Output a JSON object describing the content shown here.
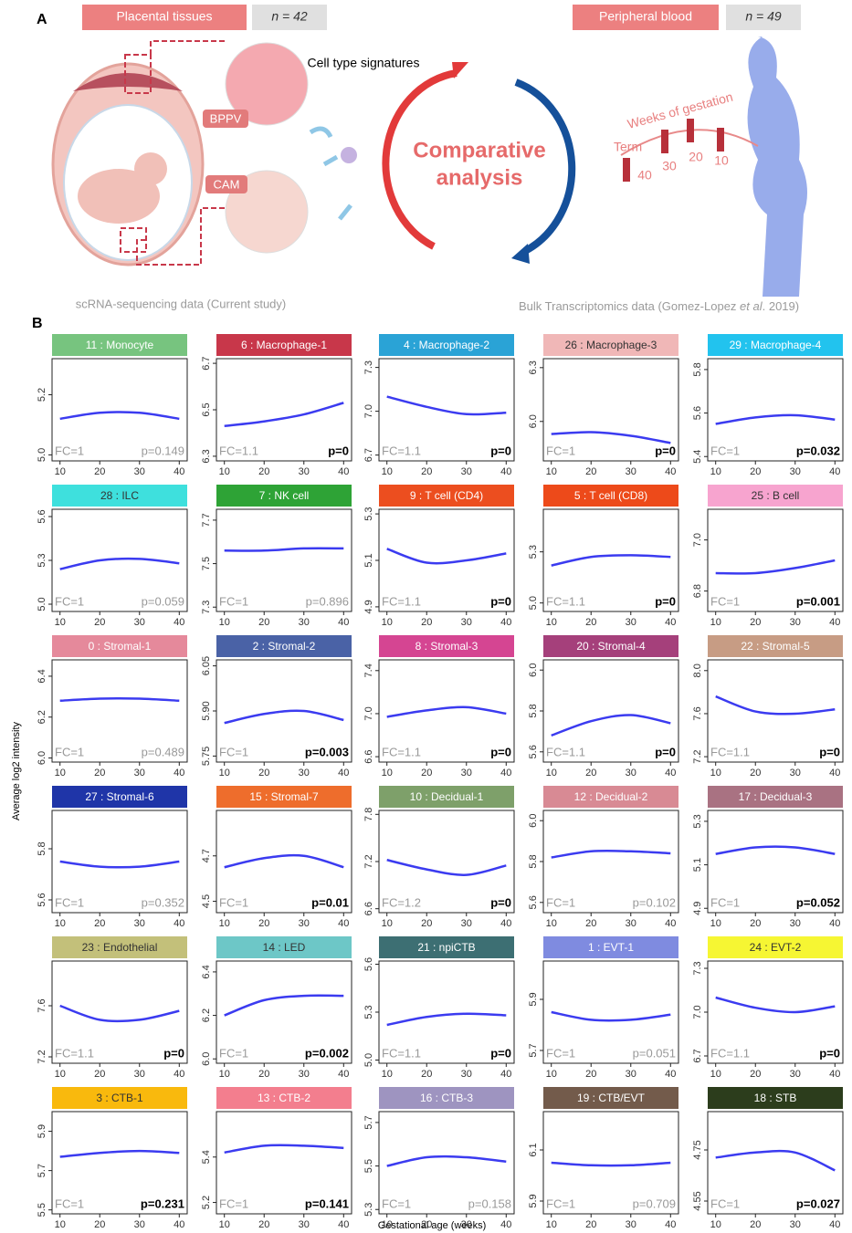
{
  "panel_a": {
    "label": "A",
    "left_title": "Placental tissues",
    "left_n": "n = 42",
    "right_title": "Peripheral blood",
    "right_n": "n = 49",
    "signatures": "Cell type signatures",
    "bppv": "BPPV",
    "cam": "CAM",
    "comparative": "Comparative",
    "analysis": "analysis",
    "weeks": "Weeks of gestation",
    "term": "Term",
    "w40": "40",
    "w30": "30",
    "w20": "20",
    "w10": "10",
    "left_caption": "scRNA-sequencing data (Current study)",
    "right_caption_a": "Bulk Transcriptomics data (Gomez-Lopez ",
    "right_caption_b": "et al",
    "right_caption_c": ". 2019)"
  },
  "panel_b": {
    "label": "B",
    "y_label": "Average log2 intensity",
    "x_label": "Gestational age (weeks)",
    "line_color": "#3b3bf0"
  },
  "chart_data": [
    {
      "type": "line",
      "title": "11 : Monocyte",
      "color": "#77c47f",
      "fc": "FC=1",
      "p": "p=0.149",
      "p_bold": false,
      "x": [
        10,
        20,
        30,
        40
      ],
      "values": [
        5.12,
        5.14,
        5.14,
        5.12
      ],
      "xlim": [
        8,
        42
      ],
      "xticks": [
        10,
        20,
        30,
        40
      ],
      "ylim": [
        4.98,
        5.32
      ],
      "yticks": [
        {
          "value": 5.0,
          "label": "5.0"
        },
        5.2
      ]
    },
    {
      "type": "line",
      "title": "6 : Macrophage-1",
      "color": "#c8374a",
      "fc": "FC=1.1",
      "p": "p=0",
      "p_bold": true,
      "x": [
        10,
        20,
        30,
        40
      ],
      "values": [
        6.43,
        6.45,
        6.48,
        6.53
      ],
      "xlim": [
        8,
        42
      ],
      "xticks": [
        10,
        20,
        30,
        40
      ],
      "ylim": [
        6.28,
        6.72
      ],
      "yticks": [
        6.3,
        6.5,
        6.7
      ]
    },
    {
      "type": "line",
      "title": "4 : Macrophage-2",
      "color": "#2aa3d6",
      "fc": "FC=1.1",
      "p": "p=0",
      "p_bold": true,
      "x": [
        10,
        20,
        30,
        40
      ],
      "values": [
        7.1,
        7.03,
        6.98,
        6.99
      ],
      "xlim": [
        8,
        42
      ],
      "xticks": [
        10,
        20,
        30,
        40
      ],
      "ylim": [
        6.66,
        7.36
      ],
      "yticks": [
        6.7,
        {
          "value": 7.0,
          "label": "7.0"
        },
        7.3
      ]
    },
    {
      "type": "line",
      "title": "26 : Macrophage-3",
      "color": "#f0b7b7",
      "fc": "FC=1",
      "p": "p=0",
      "p_bold": true,
      "x": [
        10,
        20,
        30,
        40
      ],
      "values": [
        5.93,
        5.94,
        5.92,
        5.88
      ],
      "xlim": [
        8,
        42
      ],
      "xticks": [
        10,
        20,
        30,
        40
      ],
      "ylim": [
        5.78,
        6.35
      ],
      "yticks": [
        {
          "value": 6.0,
          "label": "6.0"
        },
        6.3
      ]
    },
    {
      "type": "line",
      "title": "29 : Macrophage-4",
      "color": "#22c3ee",
      "fc": "FC=1",
      "p": "p=0.032",
      "p_bold": true,
      "x": [
        10,
        20,
        30,
        40
      ],
      "values": [
        5.55,
        5.58,
        5.59,
        5.57
      ],
      "xlim": [
        8,
        42
      ],
      "xticks": [
        10,
        20,
        30,
        40
      ],
      "ylim": [
        5.38,
        5.85
      ],
      "yticks": [
        5.4,
        5.6,
        5.8
      ]
    },
    {
      "type": "line",
      "title": "28 : ILC",
      "color": "#3ee0dd",
      "fc": "FC=1",
      "p": "p=0.059",
      "p_bold": false,
      "x": [
        10,
        20,
        30,
        40
      ],
      "values": [
        5.24,
        5.3,
        5.31,
        5.28
      ],
      "xlim": [
        8,
        42
      ],
      "xticks": [
        10,
        20,
        30,
        40
      ],
      "ylim": [
        4.95,
        5.65
      ],
      "yticks": [
        {
          "value": 5.0,
          "label": "5.0"
        },
        5.3,
        5.6
      ]
    },
    {
      "type": "line",
      "title": "7 : NK cell",
      "color": "#2ea336",
      "fc": "FC=1",
      "p": "p=0.896",
      "p_bold": false,
      "x": [
        10,
        20,
        30,
        40
      ],
      "values": [
        7.56,
        7.56,
        7.57,
        7.57
      ],
      "xlim": [
        8,
        42
      ],
      "xticks": [
        10,
        20,
        30,
        40
      ],
      "ylim": [
        7.28,
        7.75
      ],
      "yticks": [
        7.3,
        7.5,
        7.7
      ]
    },
    {
      "type": "line",
      "title": "9 : T cell (CD4)",
      "color": "#ec4e1f",
      "fc": "FC=1.1",
      "p": "p=0",
      "p_bold": true,
      "x": [
        10,
        20,
        30,
        40
      ],
      "values": [
        5.15,
        5.09,
        5.1,
        5.13
      ],
      "xlim": [
        8,
        42
      ],
      "xticks": [
        10,
        20,
        30,
        40
      ],
      "ylim": [
        4.88,
        5.32
      ],
      "yticks": [
        4.9,
        5.1,
        5.3
      ]
    },
    {
      "type": "line",
      "title": "5 : T cell (CD8)",
      "color": "#ed4a1a",
      "fc": "FC=1.1",
      "p": "p=0",
      "p_bold": true,
      "x": [
        10,
        20,
        30,
        40
      ],
      "values": [
        5.22,
        5.27,
        5.28,
        5.27
      ],
      "xlim": [
        8,
        42
      ],
      "xticks": [
        10,
        20,
        30,
        40
      ],
      "ylim": [
        4.95,
        5.55
      ],
      "yticks": [
        {
          "value": 5.0,
          "label": "5.0"
        },
        5.3
      ]
    },
    {
      "type": "line",
      "title": "25 : B cell",
      "color": "#f7a4cf",
      "fc": "FC=1",
      "p": "p=0.001",
      "p_bold": true,
      "x": [
        10,
        20,
        30,
        40
      ],
      "values": [
        6.87,
        6.87,
        6.89,
        6.92
      ],
      "xlim": [
        8,
        42
      ],
      "xticks": [
        10,
        20,
        30,
        40
      ],
      "ylim": [
        6.72,
        7.12
      ],
      "yticks": [
        6.8,
        {
          "value": 7.0,
          "label": "7.0"
        }
      ]
    },
    {
      "type": "line",
      "title": "0 : Stromal-1",
      "color": "#e5899b",
      "fc": "FC=1",
      "p": "p=0.489",
      "p_bold": false,
      "x": [
        10,
        20,
        30,
        40
      ],
      "values": [
        6.28,
        6.29,
        6.29,
        6.28
      ],
      "xlim": [
        8,
        42
      ],
      "xticks": [
        10,
        20,
        30,
        40
      ],
      "ylim": [
        5.98,
        6.48
      ],
      "yticks": [
        {
          "value": 6.0,
          "label": "6.0"
        },
        6.2,
        6.4
      ]
    },
    {
      "type": "line",
      "title": "2 : Stromal-2",
      "color": "#4a62a6",
      "fc": "FC=1",
      "p": "p=0.003",
      "p_bold": true,
      "x": [
        10,
        20,
        30,
        40
      ],
      "values": [
        5.86,
        5.89,
        5.9,
        5.87
      ],
      "xlim": [
        8,
        42
      ],
      "xticks": [
        10,
        20,
        30,
        40
      ],
      "ylim": [
        5.73,
        6.07
      ],
      "yticks": [
        5.75,
        {
          "value": 5.9,
          "label": "5.90"
        },
        6.05
      ]
    },
    {
      "type": "line",
      "title": "8 : Stromal-3",
      "color": "#d54592",
      "fc": "FC=1.1",
      "p": "p=0",
      "p_bold": true,
      "x": [
        10,
        20,
        30,
        40
      ],
      "values": [
        6.97,
        7.03,
        7.06,
        7.0
      ],
      "xlim": [
        8,
        42
      ],
      "xticks": [
        10,
        20,
        30,
        40
      ],
      "ylim": [
        6.55,
        7.5
      ],
      "yticks": [
        6.6,
        {
          "value": 7.0,
          "label": "7.0"
        },
        7.4
      ]
    },
    {
      "type": "line",
      "title": "20 : Stromal-4",
      "color": "#a5407b",
      "fc": "FC=1.1",
      "p": "p=0",
      "p_bold": true,
      "x": [
        10,
        20,
        30,
        40
      ],
      "values": [
        5.68,
        5.75,
        5.78,
        5.74
      ],
      "xlim": [
        8,
        42
      ],
      "xticks": [
        10,
        20,
        30,
        40
      ],
      "ylim": [
        5.55,
        6.05
      ],
      "yticks": [
        5.6,
        5.8,
        {
          "value": 6.0,
          "label": "6.0"
        }
      ]
    },
    {
      "type": "line",
      "title": "22 : Stromal-5",
      "color": "#c79c84",
      "fc": "FC=1.1",
      "p": "p=0",
      "p_bold": true,
      "x": [
        10,
        20,
        30,
        40
      ],
      "values": [
        7.76,
        7.62,
        7.6,
        7.64
      ],
      "xlim": [
        8,
        42
      ],
      "xticks": [
        10,
        20,
        30,
        40
      ],
      "ylim": [
        7.15,
        8.1
      ],
      "yticks": [
        7.2,
        7.6,
        {
          "value": 8.0,
          "label": "8.0"
        }
      ]
    },
    {
      "type": "line",
      "title": "27 : Stromal-6",
      "color": "#1f35a8",
      "fc": "FC=1",
      "p": "p=0.352",
      "p_bold": false,
      "x": [
        10,
        20,
        30,
        40
      ],
      "values": [
        5.75,
        5.73,
        5.73,
        5.75
      ],
      "xlim": [
        8,
        42
      ],
      "xticks": [
        10,
        20,
        30,
        40
      ],
      "ylim": [
        5.55,
        5.95
      ],
      "yticks": [
        5.6,
        5.8
      ]
    },
    {
      "type": "line",
      "title": "15 : Stromal-7",
      "color": "#ee6d2c",
      "fc": "FC=1",
      "p": "p=0.01",
      "p_bold": true,
      "x": [
        10,
        20,
        30,
        40
      ],
      "values": [
        4.65,
        4.69,
        4.7,
        4.65
      ],
      "xlim": [
        8,
        42
      ],
      "xticks": [
        10,
        20,
        30,
        40
      ],
      "ylim": [
        4.45,
        4.9
      ],
      "yticks": [
        4.5,
        4.7
      ]
    },
    {
      "type": "line",
      "title": "10 : Decidual-1",
      "color": "#7ea06a",
      "fc": "FC=1.2",
      "p": "p=0",
      "p_bold": true,
      "x": [
        10,
        20,
        30,
        40
      ],
      "values": [
        7.22,
        7.1,
        7.03,
        7.15
      ],
      "xlim": [
        8,
        42
      ],
      "xticks": [
        10,
        20,
        30,
        40
      ],
      "ylim": [
        6.55,
        7.85
      ],
      "yticks": [
        6.6,
        7.2,
        7.8
      ]
    },
    {
      "type": "line",
      "title": "12 : Decidual-2",
      "color": "#d88a94",
      "fc": "FC=1",
      "p": "p=0.102",
      "p_bold": false,
      "x": [
        10,
        20,
        30,
        40
      ],
      "values": [
        5.82,
        5.85,
        5.85,
        5.84
      ],
      "xlim": [
        8,
        42
      ],
      "xticks": [
        10,
        20,
        30,
        40
      ],
      "ylim": [
        5.55,
        6.05
      ],
      "yticks": [
        5.6,
        5.8,
        {
          "value": 6.0,
          "label": "6.0"
        }
      ]
    },
    {
      "type": "line",
      "title": "17 : Decidual-3",
      "color": "#a97282",
      "fc": "FC=1",
      "p": "p=0.052",
      "p_bold": true,
      "x": [
        10,
        20,
        30,
        40
      ],
      "values": [
        5.15,
        5.18,
        5.18,
        5.15
      ],
      "xlim": [
        8,
        42
      ],
      "xticks": [
        10,
        20,
        30,
        40
      ],
      "ylim": [
        4.88,
        5.35
      ],
      "yticks": [
        4.9,
        5.1,
        5.3
      ]
    },
    {
      "type": "line",
      "title": "23 : Endothelial",
      "color": "#c3c07a",
      "fc": "FC=1.1",
      "p": "p=0",
      "p_bold": true,
      "x": [
        10,
        20,
        30,
        40
      ],
      "values": [
        7.6,
        7.49,
        7.49,
        7.56
      ],
      "xlim": [
        8,
        42
      ],
      "xticks": [
        10,
        20,
        30,
        40
      ],
      "ylim": [
        7.15,
        7.95
      ],
      "yticks": [
        7.2,
        7.6
      ]
    },
    {
      "type": "line",
      "title": "14 : LED",
      "color": "#6dc7c7",
      "fc": "FC=1",
      "p": "p=0.002",
      "p_bold": true,
      "x": [
        10,
        20,
        30,
        40
      ],
      "values": [
        6.2,
        6.27,
        6.29,
        6.29
      ],
      "xlim": [
        8,
        42
      ],
      "xticks": [
        10,
        20,
        30,
        40
      ],
      "ylim": [
        5.98,
        6.45
      ],
      "yticks": [
        {
          "value": 6.0,
          "label": "6.0"
        },
        6.2,
        6.4
      ]
    },
    {
      "type": "line",
      "title": "21 : npiCTB",
      "color": "#3d6f73",
      "fc": "FC=1.1",
      "p": "p=0",
      "p_bold": true,
      "x": [
        10,
        20,
        30,
        40
      ],
      "values": [
        5.22,
        5.27,
        5.29,
        5.28
      ],
      "xlim": [
        8,
        42
      ],
      "xticks": [
        10,
        20,
        30,
        40
      ],
      "ylim": [
        4.98,
        5.62
      ],
      "yticks": [
        {
          "value": 5.0,
          "label": "5.0"
        },
        5.3,
        5.6
      ]
    },
    {
      "type": "line",
      "title": "1 : EVT-1",
      "color": "#7f8be0",
      "fc": "FC=1",
      "p": "p=0.051",
      "p_bold": false,
      "x": [
        10,
        20,
        30,
        40
      ],
      "values": [
        5.85,
        5.82,
        5.82,
        5.84
      ],
      "xlim": [
        8,
        42
      ],
      "xticks": [
        10,
        20,
        30,
        40
      ],
      "ylim": [
        5.65,
        6.05
      ],
      "yticks": [
        5.7,
        5.9
      ]
    },
    {
      "type": "line",
      "title": "24 : EVT-2",
      "color": "#f6f633",
      "fc": "FC=1.1",
      "p": "p=0",
      "p_bold": true,
      "x": [
        10,
        20,
        30,
        40
      ],
      "values": [
        7.1,
        7.03,
        7.0,
        7.04
      ],
      "xlim": [
        8,
        42
      ],
      "xticks": [
        10,
        20,
        30,
        40
      ],
      "ylim": [
        6.65,
        7.35
      ],
      "yticks": [
        6.7,
        {
          "value": 7.0,
          "label": "7.0"
        },
        7.3
      ]
    },
    {
      "type": "line",
      "title": "3 : CTB-1",
      "color": "#f9b90d",
      "fc": "FC=1",
      "p": "p=0.231",
      "p_bold": true,
      "x": [
        10,
        20,
        30,
        40
      ],
      "values": [
        5.77,
        5.79,
        5.8,
        5.79
      ],
      "xlim": [
        8,
        42
      ],
      "xticks": [
        10,
        20,
        30,
        40
      ],
      "ylim": [
        5.48,
        6.0
      ],
      "yticks": [
        5.5,
        5.7,
        5.9
      ]
    },
    {
      "type": "line",
      "title": "13 : CTB-2",
      "color": "#f37e8e",
      "fc": "FC=1",
      "p": "p=0.141",
      "p_bold": true,
      "x": [
        10,
        20,
        30,
        40
      ],
      "values": [
        5.42,
        5.45,
        5.45,
        5.44
      ],
      "xlim": [
        8,
        42
      ],
      "xticks": [
        10,
        20,
        30,
        40
      ],
      "ylim": [
        5.15,
        5.6
      ],
      "yticks": [
        5.2,
        5.4
      ]
    },
    {
      "type": "line",
      "title": "16 : CTB-3",
      "color": "#9e94c0",
      "fc": "FC=1",
      "p": "p=0.158",
      "p_bold": false,
      "x": [
        10,
        20,
        30,
        40
      ],
      "values": [
        5.5,
        5.54,
        5.54,
        5.52
      ],
      "xlim": [
        8,
        42
      ],
      "xticks": [
        10,
        20,
        30,
        40
      ],
      "ylim": [
        5.28,
        5.75
      ],
      "yticks": [
        5.3,
        5.5,
        5.7
      ]
    },
    {
      "type": "line",
      "title": "19 : CTB/EVT",
      "color": "#735b4b",
      "fc": "FC=1",
      "p": "p=0.709",
      "p_bold": false,
      "x": [
        10,
        20,
        30,
        40
      ],
      "values": [
        6.05,
        6.04,
        6.04,
        6.05
      ],
      "xlim": [
        8,
        42
      ],
      "xticks": [
        10,
        20,
        30,
        40
      ],
      "ylim": [
        5.85,
        6.25
      ],
      "yticks": [
        5.9,
        6.1
      ]
    },
    {
      "type": "line",
      "title": "18 : STB",
      "color": "#2c3d1c",
      "fc": "FC=1",
      "p": "p=0.027",
      "p_bold": true,
      "x": [
        10,
        20,
        30,
        40
      ],
      "values": [
        4.72,
        4.74,
        4.74,
        4.67
      ],
      "xlim": [
        8,
        42
      ],
      "xticks": [
        10,
        20,
        30,
        40
      ],
      "ylim": [
        4.5,
        4.9
      ],
      "yticks": [
        4.55,
        4.75
      ]
    }
  ]
}
